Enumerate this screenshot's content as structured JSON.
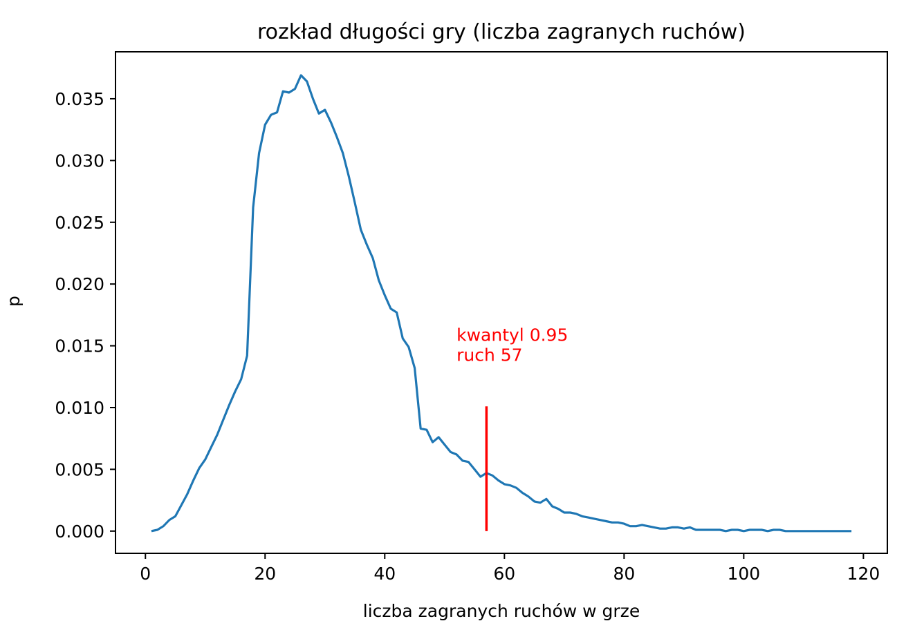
{
  "chart_data": {
    "type": "line",
    "title": "rozkład długości gry (liczba zagranych ruchów)",
    "xlabel": "liczba zagranych ruchów w grze",
    "ylabel": "p",
    "xlim": [
      -5,
      124
    ],
    "ylim": [
      -0.0018,
      0.0388
    ],
    "x_ticks": [
      0,
      20,
      40,
      60,
      80,
      100,
      120
    ],
    "x_tick_labels": [
      "0",
      "20",
      "40",
      "60",
      "80",
      "100",
      "120"
    ],
    "y_ticks": [
      0.0,
      0.005,
      0.01,
      0.015,
      0.02,
      0.025,
      0.03,
      0.035
    ],
    "y_tick_labels": [
      "0.000",
      "0.005",
      "0.010",
      "0.015",
      "0.020",
      "0.025",
      "0.030",
      "0.035"
    ],
    "grid": false,
    "series": [
      {
        "color": "#1f77b4",
        "x": [
          1,
          2,
          3,
          4,
          5,
          6,
          7,
          8,
          9,
          10,
          11,
          12,
          13,
          14,
          15,
          16,
          17,
          18,
          19,
          20,
          21,
          22,
          23,
          24,
          25,
          26,
          27,
          28,
          29,
          30,
          31,
          32,
          33,
          34,
          35,
          36,
          37,
          38,
          39,
          40,
          41,
          42,
          43,
          44,
          45,
          46,
          47,
          48,
          49,
          50,
          51,
          52,
          53,
          54,
          55,
          56,
          57,
          58,
          59,
          60,
          61,
          62,
          63,
          64,
          65,
          66,
          67,
          68,
          69,
          70,
          71,
          72,
          73,
          74,
          75,
          76,
          77,
          78,
          79,
          80,
          81,
          82,
          83,
          84,
          85,
          86,
          87,
          88,
          89,
          90,
          91,
          92,
          93,
          94,
          95,
          96,
          97,
          98,
          99,
          100,
          101,
          102,
          103,
          104,
          105,
          106,
          107,
          108,
          109,
          110,
          111,
          112,
          113,
          114,
          115,
          116,
          117,
          118
        ],
        "y": [
          0.0,
          0.0001,
          0.0004,
          0.0009,
          0.0012,
          0.0021,
          0.003,
          0.0041,
          0.0051,
          0.0058,
          0.0068,
          0.0078,
          0.009,
          0.0102,
          0.0113,
          0.0123,
          0.0142,
          0.0262,
          0.0306,
          0.0329,
          0.0337,
          0.0339,
          0.0356,
          0.0355,
          0.0358,
          0.0369,
          0.0364,
          0.035,
          0.0338,
          0.0341,
          0.0331,
          0.0319,
          0.0306,
          0.0287,
          0.0266,
          0.0244,
          0.0232,
          0.0221,
          0.0203,
          0.0191,
          0.018,
          0.0177,
          0.0156,
          0.0149,
          0.0132,
          0.0083,
          0.0082,
          0.0072,
          0.0076,
          0.007,
          0.0064,
          0.0062,
          0.0057,
          0.0056,
          0.005,
          0.0044,
          0.0047,
          0.0045,
          0.0041,
          0.0038,
          0.0037,
          0.0035,
          0.0031,
          0.0028,
          0.0024,
          0.0023,
          0.0026,
          0.002,
          0.0018,
          0.0015,
          0.0015,
          0.0014,
          0.0012,
          0.0011,
          0.001,
          0.0009,
          0.0008,
          0.0007,
          0.0007,
          0.0006,
          0.0004,
          0.0004,
          0.0005,
          0.0004,
          0.0003,
          0.0002,
          0.0002,
          0.0003,
          0.0003,
          0.0002,
          0.0003,
          0.0001,
          0.0001,
          0.0001,
          0.0001,
          0.0001,
          0.0,
          0.0001,
          0.0001,
          0.0,
          0.0001,
          0.0001,
          0.0001,
          0.0,
          0.0001,
          0.0001,
          0.0,
          0.0,
          0.0,
          0.0,
          0.0,
          0.0,
          0.0,
          0.0,
          0.0,
          0.0,
          0.0,
          0.0
        ]
      }
    ],
    "vline": {
      "x": 57,
      "y_from": 0.0,
      "y_to": 0.0101,
      "color": "#ff0000"
    },
    "annotation": {
      "lines": [
        "kwantyl 0.95",
        "ruch 57"
      ],
      "x": 52,
      "y": 0.0155,
      "color": "#ff0000"
    }
  }
}
